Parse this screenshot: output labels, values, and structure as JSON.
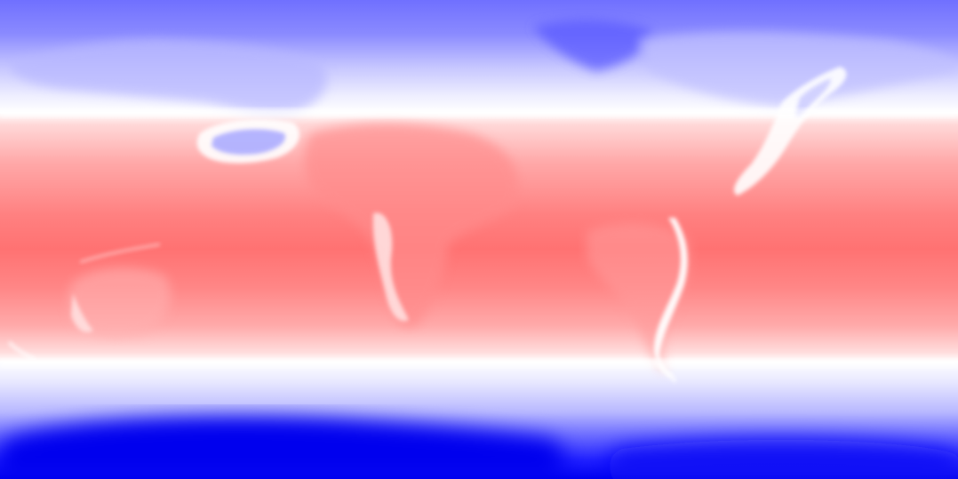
{
  "map": {
    "projection": "equirectangular",
    "colormap": {
      "cold": "#0000ff",
      "neutral": "#ffffff",
      "warm": "#ff7373"
    },
    "bands": {
      "north_pole": "#7373ff",
      "north_mid": "#c8c8ff",
      "north_white": "#ffffff",
      "tropics": "#ff7070",
      "south_white": "#ffffff",
      "south_mid": "#c8c8ff",
      "south_pole": "#0000f5"
    }
  }
}
